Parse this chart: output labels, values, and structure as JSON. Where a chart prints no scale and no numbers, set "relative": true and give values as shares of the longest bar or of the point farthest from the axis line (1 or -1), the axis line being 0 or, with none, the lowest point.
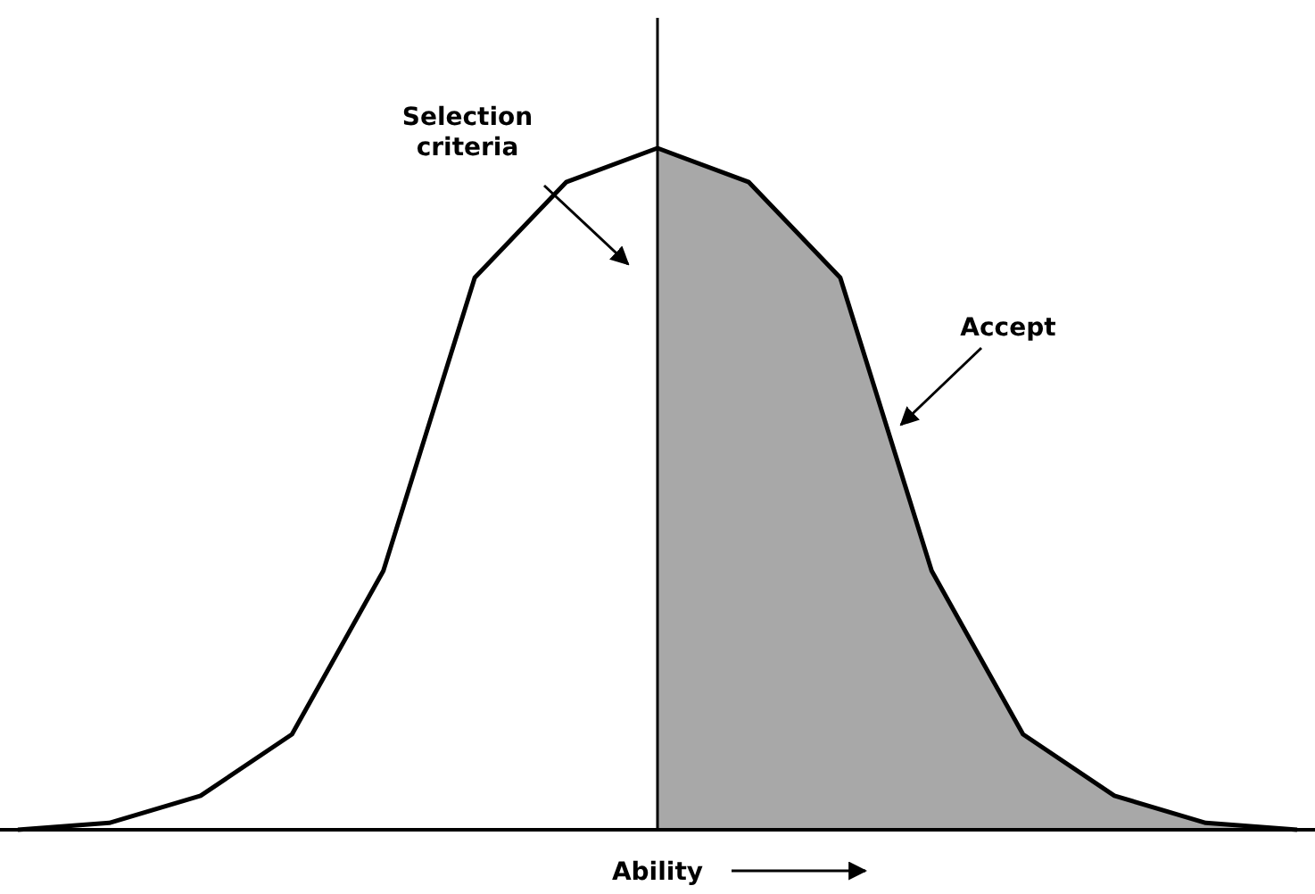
{
  "chart_data": {
    "type": "line",
    "relative": true,
    "xlabel": "Ability",
    "categories": [
      null,
      null,
      null,
      null,
      null,
      null,
      null,
      null,
      null,
      null,
      null,
      null,
      null,
      null,
      null
    ],
    "series": [
      {
        "type": "area",
        "color": "#a8a8a8",
        "values": [
          null,
          null,
          null,
          null,
          null,
          null,
          null,
          1,
          0.95,
          0.81,
          0.38,
          0.14,
          0.05,
          0.01,
          0
        ]
      },
      {
        "color": "#000000",
        "values": [
          0,
          0.01,
          0.05,
          0.14,
          0.38,
          0.81,
          0.95,
          1,
          0.95,
          0.81,
          0.38,
          0.14,
          0.05,
          0.01,
          0
        ]
      }
    ],
    "annotations": [
      "Selection criteria",
      "Accept"
    ],
    "marker": "none",
    "line_style": "solid"
  }
}
